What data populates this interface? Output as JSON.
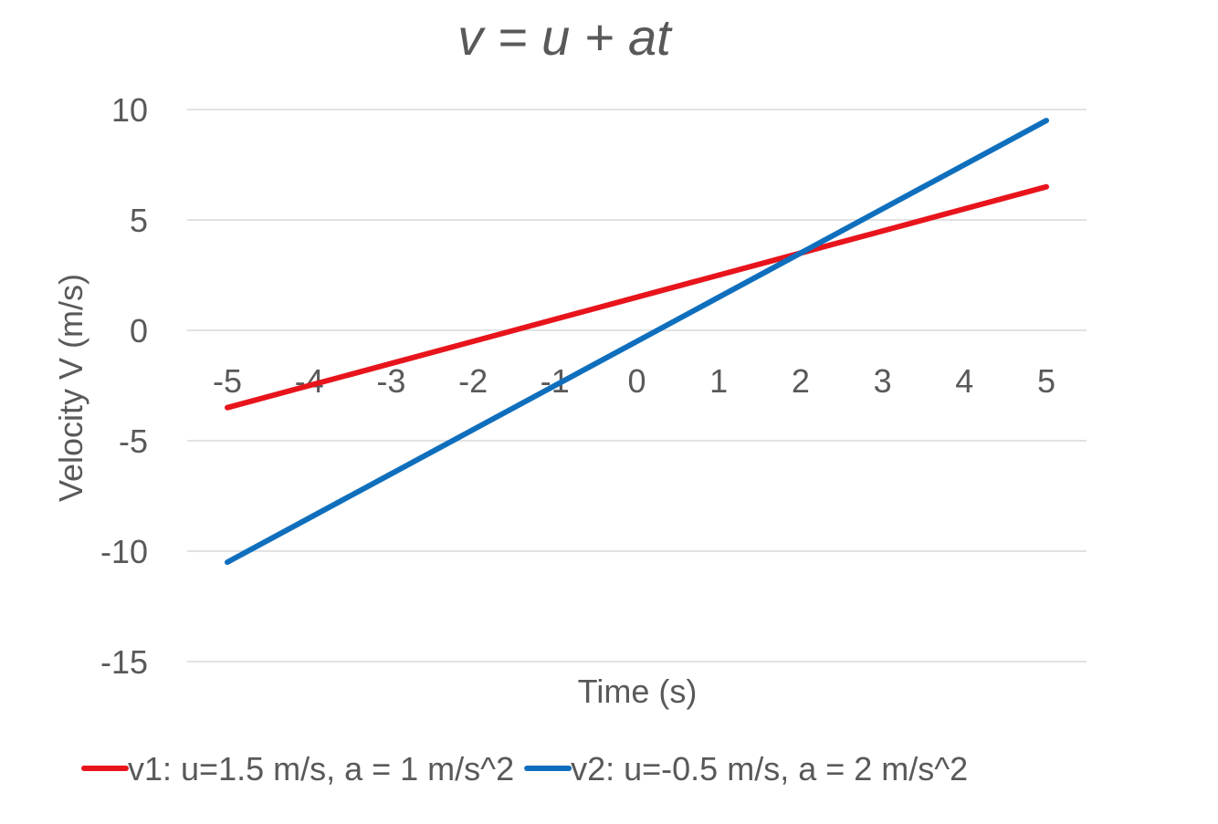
{
  "chart_data": {
    "type": "line",
    "title": "v = u + at",
    "xlabel": "Time (s)",
    "ylabel": "Velocity V (m/s)",
    "x": [
      -5,
      -4,
      -3,
      -2,
      -1,
      0,
      1,
      2,
      3,
      4,
      5
    ],
    "xticks": [
      "-5",
      "-4",
      "-3",
      "-2",
      "-1",
      "0",
      "1",
      "2",
      "3",
      "4",
      "5"
    ],
    "ylim": [
      -15,
      10
    ],
    "yticks": [
      10,
      5,
      0,
      -5,
      -10,
      -15
    ],
    "grid": true,
    "legend_position": "bottom",
    "series": [
      {
        "name": "v1: u=1.5 m/s, a = 1 m/s^2",
        "color": "#e8141c",
        "values": [
          -3.5,
          -2.5,
          -1.5,
          -0.5,
          0.5,
          1.5,
          2.5,
          3.5,
          4.5,
          5.5,
          6.5
        ]
      },
      {
        "name": "v2: u=-0.5 m/s, a = 2 m/s^2",
        "color": "#0f6fbd",
        "values": [
          -10.5,
          -8.5,
          -6.5,
          -4.5,
          -2.5,
          -0.5,
          1.5,
          3.5,
          5.5,
          7.5,
          9.5
        ]
      }
    ]
  }
}
